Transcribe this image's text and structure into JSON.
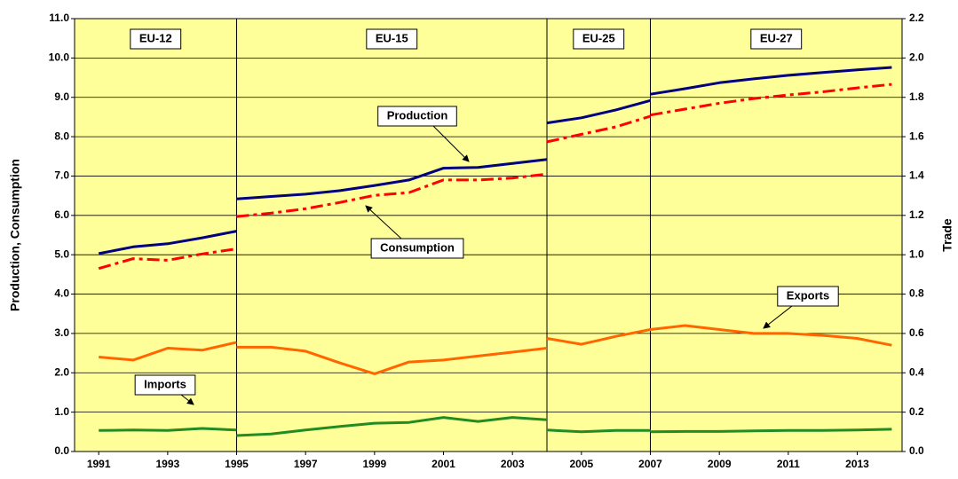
{
  "chart_data": {
    "type": "line",
    "y_label": "Production, Consumption",
    "y2_label": "Trade",
    "background": "#ffff99",
    "grid": true,
    "x": [
      1991,
      1992,
      1993,
      1994,
      1995,
      1995,
      1995,
      1996,
      1997,
      1998,
      1999,
      2000,
      2001,
      2002,
      2003,
      2004,
      2004,
      2004,
      2005,
      2006,
      2007,
      2007,
      2007,
      2008,
      2009,
      2010,
      2011,
      2012,
      2013,
      2014
    ],
    "xlim": [
      1990.3,
      2014.3
    ],
    "xticks": [
      1991,
      1993,
      1995,
      1997,
      1999,
      2001,
      2003,
      2005,
      2007,
      2009,
      2011,
      2013
    ],
    "ylim": [
      0,
      11
    ],
    "yticks": [
      {
        "value": 0,
        "label": "0.0"
      },
      {
        "value": 1,
        "label": "1.0"
      },
      {
        "value": 2,
        "label": "2.0"
      },
      {
        "value": 3,
        "label": "3.0"
      },
      {
        "value": 4,
        "label": "4.0"
      },
      {
        "value": 5,
        "label": "5.0"
      },
      {
        "value": 6,
        "label": "6.0"
      },
      {
        "value": 7,
        "label": "7.0"
      },
      {
        "value": 8,
        "label": "8.0"
      },
      {
        "value": 9,
        "label": "9.0"
      },
      {
        "value": 10,
        "label": "10.0"
      },
      {
        "value": 11,
        "label": "11.0"
      }
    ],
    "y2lim": [
      0,
      2.2
    ],
    "y2ticks": [
      {
        "value": 0,
        "label": "0.0"
      },
      0.2,
      0.4,
      0.6,
      0.8,
      {
        "value": 1,
        "label": "1.0"
      },
      1.2,
      1.4,
      1.6,
      1.8,
      {
        "value": 2,
        "label": "2.0"
      },
      2.2
    ],
    "dividers": [
      1995,
      2004,
      2007
    ],
    "regions": [
      "EU-12",
      "EU-15",
      "EU-25",
      "EU-27"
    ],
    "series": [
      {
        "name": "Production",
        "color": "#000080",
        "style": "solid",
        "values": [
          5.03,
          5.2,
          5.28,
          5.43,
          5.6,
          null,
          6.42,
          6.48,
          6.54,
          6.63,
          6.76,
          6.9,
          7.2,
          7.22,
          7.32,
          7.42,
          null,
          8.35,
          8.48,
          8.68,
          8.92,
          null,
          9.08,
          9.22,
          9.37,
          9.47,
          9.56,
          9.63,
          9.7,
          9.76
        ]
      },
      {
        "name": "Consumption",
        "color": "#ff0000",
        "style": "dashdot",
        "values": [
          4.65,
          4.9,
          4.86,
          5.02,
          5.15,
          null,
          5.97,
          6.06,
          6.17,
          6.33,
          6.51,
          6.58,
          6.9,
          6.9,
          6.95,
          7.05,
          null,
          7.87,
          8.06,
          8.25,
          8.52,
          null,
          8.55,
          8.7,
          8.85,
          8.97,
          9.06,
          9.14,
          9.24,
          9.33
        ]
      },
      {
        "name": "Exports",
        "color": "#ff6600",
        "style": "solid",
        "axis": "y2",
        "values": [
          0.48,
          0.465,
          0.525,
          0.515,
          0.555,
          null,
          0.53,
          0.53,
          0.51,
          0.45,
          0.395,
          0.455,
          0.465,
          0.485,
          0.505,
          0.525,
          null,
          0.575,
          0.545,
          0.585,
          0.62,
          null,
          0.62,
          0.64,
          0.62,
          0.6,
          0.6,
          0.59,
          0.575,
          0.54
        ]
      },
      {
        "name": "Imports",
        "color": "#228b22",
        "style": "solid",
        "axis": "y2",
        "values": [
          0.107,
          0.109,
          0.107,
          0.117,
          0.109,
          null,
          0.081,
          0.089,
          0.109,
          0.127,
          0.144,
          0.148,
          0.173,
          0.153,
          0.173,
          0.161,
          null,
          0.109,
          0.1,
          0.107,
          0.107,
          null,
          0.1,
          0.102,
          0.102,
          0.105,
          0.107,
          0.107,
          0.109,
          0.113
        ]
      }
    ]
  }
}
